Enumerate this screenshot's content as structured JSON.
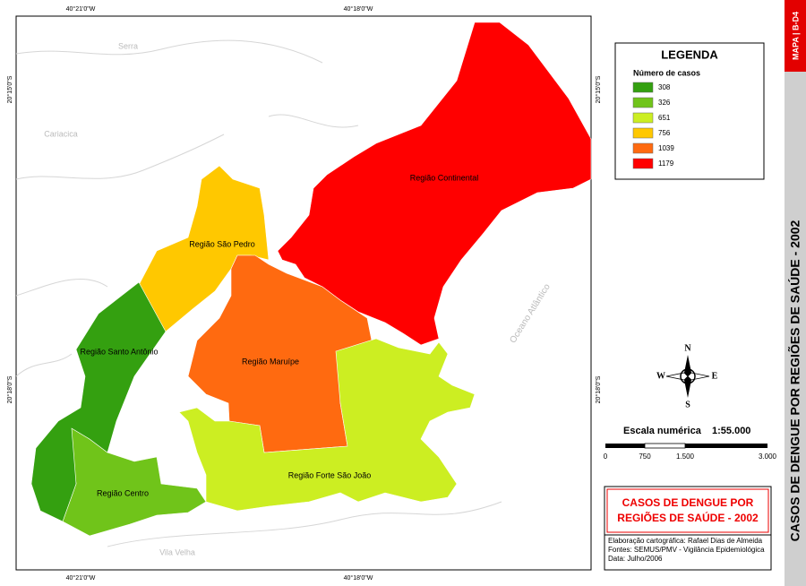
{
  "sidebar": {
    "map_code": "MAPA | B-D4",
    "title": "CASOS DE DENGUE POR REGIÕES DE SAÚDE - 2002"
  },
  "coordinates": {
    "top": [
      "40°21'0\"W",
      "40°18'0\"W"
    ],
    "bottom": [
      "40°21'0\"W",
      "40°18'0\"W"
    ],
    "left": [
      "20°15'0\"S",
      "20°18'0\"S"
    ],
    "right": [
      "20°15'0\"S",
      "20°18'0\"S"
    ]
  },
  "places": [
    "Serra",
    "Cariacica",
    "Vila Velha",
    "Oceano Atlântico"
  ],
  "regions": [
    {
      "name": "Região Continental",
      "color": "#ff0000"
    },
    {
      "name": "Região São Pedro",
      "color": "#ffc800"
    },
    {
      "name": "Região Maruípe",
      "color": "#ff6a10"
    },
    {
      "name": "Região Forte São João",
      "color": "#ccee22"
    },
    {
      "name": "Região Centro",
      "color": "#70c41a"
    },
    {
      "name": "Região Santo Antônio",
      "color": "#34a010"
    }
  ],
  "legend": {
    "title": "LEGENDA",
    "subtitle": "Número de casos",
    "items": [
      {
        "label": "308",
        "color": "#34a010"
      },
      {
        "label": "326",
        "color": "#70c41a"
      },
      {
        "label": "651",
        "color": "#ccee22"
      },
      {
        "label": "756",
        "color": "#ffc800"
      },
      {
        "label": "1039",
        "color": "#ff6a10"
      },
      {
        "label": "1179",
        "color": "#ff0000"
      }
    ]
  },
  "compass": {
    "north": "N",
    "south": "S",
    "east": "E",
    "west": "W"
  },
  "scale": {
    "label": "Escala numérica",
    "ratio": "1:55.000",
    "ticks": [
      "0",
      "750",
      "1.500",
      "3.000"
    ]
  },
  "title_box": {
    "lines": [
      "CASOS DE DENGUE POR",
      "REGIÕES DE SAÚDE - 2002"
    ]
  },
  "credits": [
    "Elaboração cartográfica: Rafael Dias de Almeida",
    "Fontes: SEMUS/PMV - Vigilância Epidemiológica",
    "Data: Julho/2006"
  ]
}
